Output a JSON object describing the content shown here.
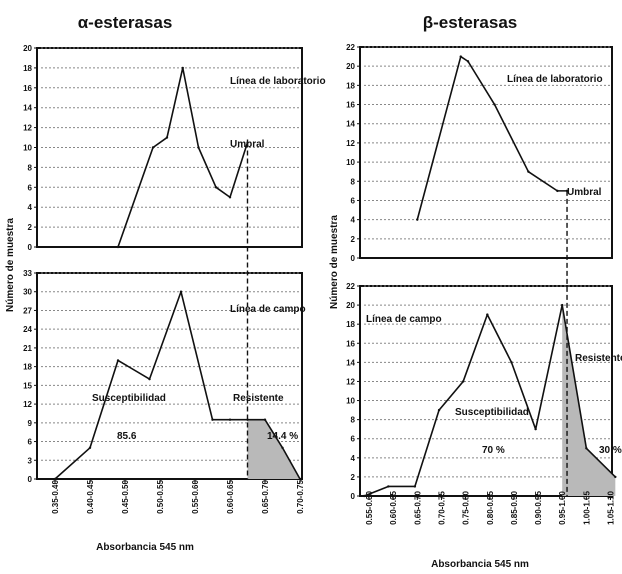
{
  "chart_data": [
    {
      "type": "line",
      "title": "α-esterasas",
      "ylabel": "Número de muestra",
      "xlabel": "Absorbancia 545 nm",
      "categories": [
        "0.35-0.40",
        "0.40-0.45",
        "0.45-0.50",
        "0.50-0.55",
        "0.55-0.60",
        "0.60-0.65",
        "0.65-0.70",
        "0.70-0.75"
      ],
      "threshold": 5.5,
      "panels": [
        {
          "name": "Línea de laboratorio",
          "ylim": [
            0,
            20
          ],
          "yticks": [
            0,
            2,
            4,
            6,
            8,
            10,
            12,
            14,
            16,
            18,
            20
          ],
          "grid": true,
          "x": [
            1.8,
            2.8,
            3.2,
            3.65,
            4.1,
            4.6,
            5.0,
            5.5
          ],
          "values": [
            0,
            10,
            11,
            18,
            10,
            6,
            5,
            10.5
          ],
          "labels": [
            {
              "text": "Línea de laboratorio"
            },
            {
              "text": "Umbral"
            }
          ]
        },
        {
          "name": "Línea de campo",
          "ylim": [
            0,
            33
          ],
          "yticks": [
            0,
            3,
            6,
            9,
            12,
            15,
            18,
            21,
            24,
            27,
            30,
            33
          ],
          "grid": true,
          "x": [
            0,
            1,
            1.8,
            2.7,
            3.6,
            4.5,
            5.0,
            5.5,
            6.0,
            6.5,
            7.0
          ],
          "values": [
            0,
            5,
            19,
            16,
            30,
            9.5,
            9.5,
            9.5,
            9.5,
            5,
            0
          ],
          "shaded_from": 5.5,
          "labels": [
            {
              "text": "Línea de campo"
            },
            {
              "text": "Susceptibilidad"
            },
            {
              "text": "Resistente"
            },
            {
              "text": "85.6"
            },
            {
              "text": "14.4 %"
            }
          ]
        }
      ]
    },
    {
      "type": "line",
      "title": "β-esterasas",
      "ylabel": "Número de muestra",
      "xlabel": "Absorbancia 545 nm",
      "categories": [
        "0.55-0.60",
        "0.60-0.65",
        "0.65-0.70",
        "0.70-0.75",
        "0.75-0.80",
        "0.80-0.85",
        "0.85-0.90",
        "0.90-0.95",
        "0.95-1.00",
        "1.00-1.05",
        "1.05-1.10"
      ],
      "threshold": 8.2,
      "panels": [
        {
          "name": "Línea de laboratorio",
          "ylim": [
            0,
            22
          ],
          "yticks": [
            0,
            2,
            4,
            6,
            8,
            10,
            12,
            14,
            16,
            18,
            20,
            22
          ],
          "grid": true,
          "x": [
            2.0,
            3.8,
            4.1,
            5.2,
            6.6,
            7.8,
            8.2
          ],
          "values": [
            4,
            21,
            20.5,
            16,
            9,
            7,
            7
          ],
          "labels": [
            {
              "text": "Línea de laboratorio"
            },
            {
              "text": "Umbral"
            }
          ]
        },
        {
          "name": "Línea de campo",
          "ylim": [
            0,
            22
          ],
          "yticks": [
            0,
            2,
            4,
            6,
            8,
            10,
            12,
            14,
            16,
            18,
            20,
            22
          ],
          "grid": true,
          "x": [
            -0.2,
            0.8,
            1.9,
            2.9,
            3.9,
            4.9,
            5.9,
            6.9,
            8.0,
            9.0,
            10.2
          ],
          "values": [
            0,
            1,
            1,
            9,
            12,
            19,
            14,
            7,
            20,
            5,
            2
          ],
          "shaded_from": 8.0,
          "labels": [
            {
              "text": "Línea de campo"
            },
            {
              "text": "Resistente"
            },
            {
              "text": "Susceptibilidad"
            },
            {
              "text": "70 %"
            },
            {
              "text": "30 %"
            }
          ]
        }
      ]
    }
  ]
}
